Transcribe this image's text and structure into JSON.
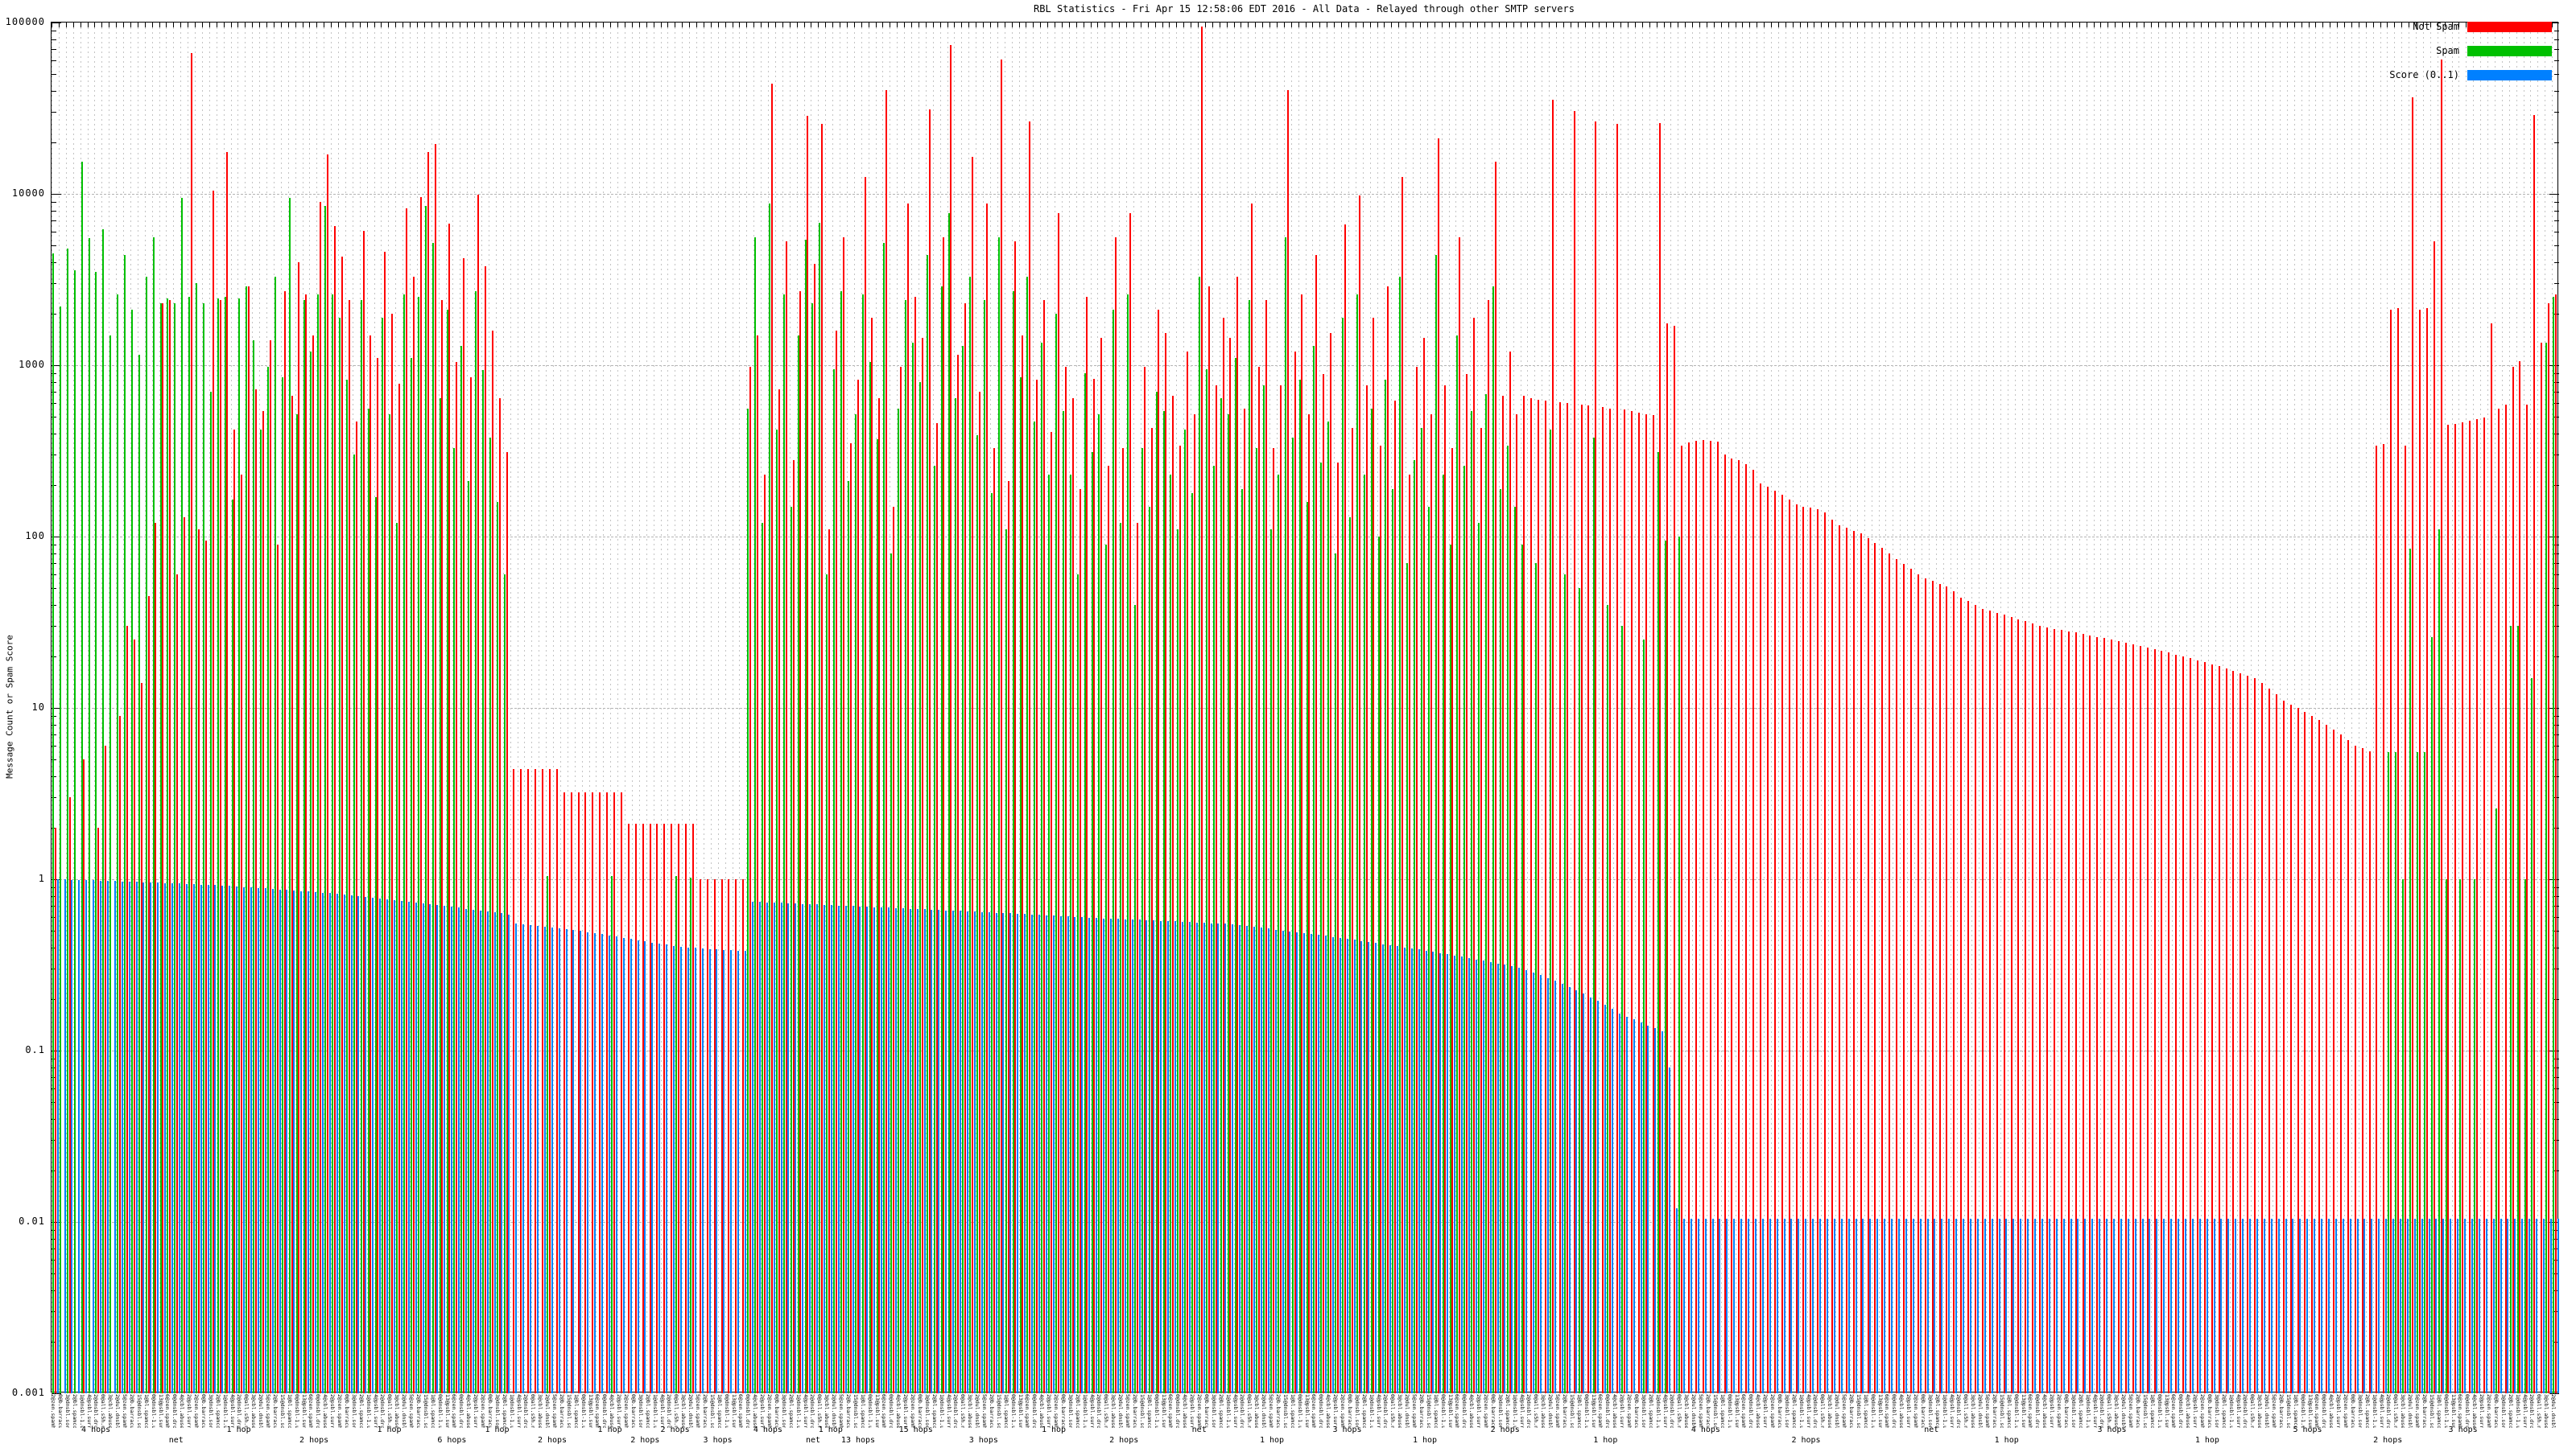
{
  "title": "RBL Statistics - Fri Apr 15 12:58:06 EDT 2016 - All Data - Relayed through other SMTP servers",
  "y_axis": {
    "label": "Message Count or Spam Score",
    "tick_labels": [
      "100000",
      "10000",
      "1000",
      "100",
      "10",
      "1",
      "0.1",
      "0.01",
      "0.001"
    ]
  },
  "legend": [
    {
      "label": "Not Spam",
      "color": "#ff0000"
    },
    {
      "label": "Spam",
      "color": "#00c000"
    },
    {
      "label": "Score (0..1)",
      "color": "#0080ff"
    }
  ],
  "x_axis": {
    "sublabels": [
      [
        0.018,
        "4 hops"
      ],
      [
        0.05,
        "net"
      ],
      [
        0.075,
        "1 hop"
      ],
      [
        0.105,
        "2 hops"
      ],
      [
        0.135,
        "1 hop"
      ],
      [
        0.16,
        "6 hops"
      ],
      [
        0.178,
        "1 hop"
      ],
      [
        0.2,
        "2 hops"
      ],
      [
        0.223,
        "1 hop"
      ],
      [
        0.237,
        "2 hops"
      ],
      [
        0.249,
        "2 hops"
      ],
      [
        0.266,
        "3 hops"
      ],
      [
        0.286,
        "4 hops"
      ],
      [
        0.304,
        "net"
      ],
      [
        0.311,
        "1 hop"
      ],
      [
        0.322,
        "13 hops"
      ],
      [
        0.345,
        "15 hops"
      ],
      [
        0.372,
        "3 hops"
      ],
      [
        0.4,
        "1 hop"
      ],
      [
        0.428,
        "2 hops"
      ],
      [
        0.458,
        "net"
      ],
      [
        0.487,
        "1 hop"
      ],
      [
        0.517,
        "3 hops"
      ],
      [
        0.548,
        "1 hop"
      ],
      [
        0.58,
        "2 hops"
      ],
      [
        0.62,
        "1 hop"
      ],
      [
        0.66,
        "4 hops"
      ],
      [
        0.7,
        "2 hops"
      ],
      [
        0.75,
        "net"
      ],
      [
        0.78,
        "1 hop"
      ],
      [
        0.822,
        "3 hops"
      ],
      [
        0.86,
        "1 hop"
      ],
      [
        0.9,
        "5 hops"
      ],
      [
        0.932,
        "2 hops"
      ],
      [
        0.962,
        "3 hops"
      ]
    ],
    "label_fragments": [
      "2@zen.spamhaus.org",
      "0@b.barracudacentral.org",
      "3@dnsbl.sorbs.net",
      "2@bl.spamcop.net",
      "1@dnsbl-1.uceprotect.net",
      "4@psbl.surriel.com",
      "2@dnsbl.dronebl.org",
      "0@all.s5h.net",
      "3@cbl.abuseat.org",
      "2@dul.dnsbl.sorbs.net",
      "5@zen.spamhaus.org",
      "2@b.barracudacentral.org",
      "15@dnsbl.sorbs.net",
      "1@bl.spamcop.net",
      "0@dnsbl-1.uceprotect.net",
      "13@psbl.surriel.com",
      "6@zen.spamhaus.org",
      "0@dnsbl.dronebl.org",
      "4@cbl.abuseat.org",
      "2@psbl.surriel.com"
    ]
  },
  "chart_data": {
    "type": "bar",
    "y_scale": "log",
    "ylim": [
      0.001,
      100000
    ],
    "grid": true,
    "legend_position": "top-right",
    "title": "RBL Statistics - Fri Apr 15 12:58:06 EDT 2016 - All Data - Relayed through other SMTP servers",
    "ylabel": "Message Count or Spam Score",
    "series": [
      {
        "name": "Not Spam",
        "color": "#ff0000",
        "values": [
          2,
          0,
          3,
          0,
          5,
          0,
          2,
          6,
          0,
          9,
          30,
          25,
          14,
          45,
          120,
          2300,
          2400,
          60,
          130,
          66000,
          110,
          95,
          10500,
          2400,
          17500,
          420,
          230,
          2900,
          720,
          540,
          1400,
          90,
          2700,
          660,
          4000,
          2600,
          1500,
          9000,
          17000,
          6500,
          4300,
          2400,
          470,
          6100,
          1500,
          1100,
          4600,
          2000,
          780,
          8200,
          3300,
          9600,
          17500,
          19500,
          2400,
          6700,
          1050,
          4200,
          850,
          9900,
          3800,
          1600,
          640,
          310,
          4.4,
          4.4,
          4.4,
          4.4,
          4.4,
          4.4,
          4.4,
          3.2,
          3.2,
          3.2,
          3.2,
          3.2,
          3.2,
          3.2,
          3.2,
          3.2,
          2.1,
          2.1,
          2.1,
          2.1,
          2.1,
          2.1,
          2.1,
          2.1,
          2.1,
          2.1,
          1,
          1,
          1,
          1,
          1,
          1,
          1,
          980,
          1500,
          230,
          44000,
          720,
          5300,
          280,
          2700,
          28500,
          3900,
          25500,
          110,
          1600,
          5600,
          350,
          820,
          12500,
          1900,
          640,
          40500,
          150,
          980,
          8800,
          2500,
          1450,
          31000,
          460,
          5600,
          74000,
          1150,
          2300,
          16500,
          700,
          8800,
          330,
          61000,
          210,
          5300,
          1500,
          26500,
          820,
          2400,
          410,
          7700,
          980,
          640,
          190,
          2500,
          830,
          1450,
          260,
          5600,
          330,
          7700,
          120,
          980,
          430,
          2100,
          1550,
          660,
          340,
          1200,
          520,
          95000,
          2900,
          760,
          1900,
          1450,
          3300,
          560,
          8800,
          980,
          2400,
          330,
          760,
          40500,
          1200,
          2600,
          520,
          4400,
          890,
          1550,
          270,
          6600,
          430,
          9800,
          760,
          1900,
          340,
          2900,
          620,
          12500,
          230,
          980,
          1450,
          520,
          21000,
          760,
          330,
          5600,
          890,
          1900,
          430,
          2400,
          15500,
          660,
          1200,
          520,
          660,
          640,
          630,
          620,
          35500,
          610,
          600,
          30500,
          590,
          580,
          26500,
          570,
          560,
          25500,
          550,
          540,
          530,
          520,
          510,
          26000,
          1750,
          1700,
          340,
          355,
          362,
          365,
          362,
          358,
          300,
          285,
          280,
          265,
          245,
          205,
          195,
          185,
          175,
          165,
          155,
          150,
          147,
          144,
          138,
          125,
          117,
          113,
          108,
          105,
          98,
          92,
          86,
          80,
          74,
          69,
          65,
          60,
          57,
          55,
          53,
          51,
          48,
          44,
          42,
          40,
          38,
          37,
          36,
          35,
          34,
          33,
          32,
          31,
          30,
          29.5,
          29,
          28.5,
          28,
          27.5,
          27,
          26.5,
          26,
          25.5,
          25,
          24.5,
          24,
          23.5,
          23,
          22.5,
          22,
          21.5,
          21,
          20.5,
          20,
          19.5,
          19,
          18.5,
          18,
          17.5,
          17,
          16.5,
          16,
          15.5,
          15,
          14,
          13,
          12,
          11,
          10.5,
          10,
          9.5,
          9,
          8.5,
          8,
          7.5,
          7,
          6.5,
          6,
          5.8,
          5.6,
          340,
          345,
          2100,
          2150,
          340,
          36500,
          2100,
          2150,
          5300,
          61000,
          450,
          455,
          465,
          475,
          485,
          495,
          1750,
          560,
          590,
          980,
          1060,
          590,
          29000,
          1350,
          2300,
          2600
        ]
      },
      {
        "name": "Spam",
        "color": "#00c000",
        "values": [
          4500,
          2200,
          4800,
          3600,
          15500,
          5500,
          3500,
          6200,
          1500,
          2600,
          4400,
          2100,
          1150,
          3300,
          5600,
          2300,
          2450,
          2300,
          9500,
          2500,
          3000,
          2300,
          700,
          2450,
          2500,
          165,
          2450,
          2900,
          1400,
          420,
          980,
          3300,
          850,
          9500,
          520,
          2400,
          1200,
          2600,
          8500,
          2600,
          1900,
          820,
          300,
          2400,
          560,
          170,
          1900,
          520,
          120,
          2600,
          1100,
          2500,
          8500,
          5200,
          640,
          2100,
          330,
          1300,
          210,
          2700,
          940,
          380,
          160,
          60,
          0,
          0,
          0,
          0,
          0,
          1.05,
          0,
          0,
          0,
          0,
          0,
          0,
          0,
          0,
          1.05,
          0,
          0,
          0,
          0,
          0,
          0,
          0,
          0,
          1.05,
          0,
          1.02,
          0,
          0,
          0,
          0,
          0,
          0,
          0,
          560,
          5600,
          120,
          8800,
          420,
          2600,
          150,
          1500,
          5400,
          2300,
          6800,
          60,
          950,
          2700,
          210,
          520,
          2600,
          1050,
          370,
          5200,
          80,
          560,
          2400,
          1350,
          800,
          4400,
          260,
          2900,
          7700,
          640,
          1300,
          3300,
          390,
          2400,
          180,
          5600,
          110,
          2700,
          850,
          3300,
          470,
          1350,
          230,
          2000,
          540,
          230,
          60,
          900,
          310,
          520,
          90,
          2100,
          120,
          2600,
          40,
          330,
          150,
          700,
          540,
          230,
          110,
          420,
          180,
          3300,
          950,
          260,
          640,
          520,
          1100,
          190,
          2400,
          330,
          760,
          110,
          230,
          5600,
          380,
          820,
          160,
          1300,
          270,
          470,
          80,
          1900,
          130,
          2600,
          230,
          560,
          100,
          820,
          190,
          3300,
          70,
          280,
          430,
          150,
          4400,
          230,
          90,
          1500,
          260,
          540,
          120,
          680,
          2900,
          190,
          340,
          150,
          90,
          0,
          70,
          0,
          420,
          0,
          60,
          0,
          50,
          0,
          380,
          0,
          40,
          0,
          30,
          0,
          0,
          25,
          0,
          310,
          95,
          0,
          100,
          0,
          0,
          0,
          0,
          0,
          0,
          0,
          0,
          0,
          0,
          0,
          0,
          0,
          0,
          0,
          0,
          0,
          0,
          0,
          0,
          0,
          0,
          0,
          0,
          0,
          0,
          0,
          0,
          0,
          0,
          0,
          0,
          0,
          0,
          0,
          0,
          0,
          0,
          0,
          0,
          0,
          0,
          0,
          0,
          0,
          0,
          0,
          0,
          0,
          0,
          0,
          0,
          0,
          0,
          0,
          0,
          0,
          0,
          0,
          0,
          0,
          0,
          0,
          0,
          0,
          0,
          0,
          0,
          0,
          0,
          0,
          0,
          0,
          0,
          0,
          0,
          0,
          0,
          0,
          0,
          0,
          0,
          0,
          0,
          0,
          0,
          0,
          0,
          0,
          0,
          0,
          0,
          0,
          0,
          0,
          0,
          0,
          0,
          5.5,
          5.5,
          1,
          85,
          5.5,
          5.5,
          26,
          110,
          1,
          0,
          1,
          0,
          1,
          0,
          0,
          2.6,
          0,
          30,
          30,
          1,
          15,
          0,
          1350,
          2500
        ]
      },
      {
        "name": "Score (0..1)",
        "color": "#0080ff",
        "values": [
          1.0,
          1.0,
          0.995,
          0.99,
          0.988,
          0.985,
          0.982,
          0.978,
          0.975,
          0.972,
          0.968,
          0.965,
          0.962,
          0.958,
          0.955,
          0.951,
          0.948,
          0.944,
          0.94,
          0.936,
          0.932,
          0.928,
          0.924,
          0.92,
          0.915,
          0.91,
          0.9,
          0.895,
          0.89,
          0.884,
          0.878,
          0.872,
          0.866,
          0.86,
          0.854,
          0.848,
          0.842,
          0.836,
          0.83,
          0.824,
          0.818,
          0.81,
          0.8,
          0.79,
          0.78,
          0.77,
          0.762,
          0.754,
          0.746,
          0.738,
          0.73,
          0.722,
          0.714,
          0.706,
          0.698,
          0.69,
          0.682,
          0.674,
          0.666,
          0.658,
          0.65,
          0.64,
          0.632,
          0.624,
          0.55,
          0.545,
          0.54,
          0.535,
          0.53,
          0.525,
          0.52,
          0.512,
          0.505,
          0.5,
          0.492,
          0.485,
          0.478,
          0.47,
          0.462,
          0.455,
          0.448,
          0.44,
          0.434,
          0.428,
          0.422,
          0.416,
          0.41,
          0.405,
          0.4,
          0.398,
          0.395,
          0.392,
          0.39,
          0.388,
          0.386,
          0.384,
          0.382,
          0.74,
          0.737,
          0.734,
          0.731,
          0.728,
          0.725,
          0.722,
          0.719,
          0.716,
          0.713,
          0.71,
          0.707,
          0.704,
          0.701,
          0.698,
          0.695,
          0.692,
          0.689,
          0.686,
          0.683,
          0.68,
          0.677,
          0.674,
          0.671,
          0.668,
          0.665,
          0.662,
          0.659,
          0.656,
          0.653,
          0.65,
          0.647,
          0.644,
          0.641,
          0.638,
          0.635,
          0.632,
          0.629,
          0.626,
          0.623,
          0.62,
          0.617,
          0.614,
          0.611,
          0.608,
          0.605,
          0.6,
          0.598,
          0.595,
          0.592,
          0.59,
          0.588,
          0.585,
          0.582,
          0.58,
          0.578,
          0.575,
          0.572,
          0.57,
          0.568,
          0.565,
          0.562,
          0.56,
          0.558,
          0.555,
          0.552,
          0.55,
          0.545,
          0.539,
          0.533,
          0.527,
          0.521,
          0.515,
          0.509,
          0.503,
          0.497,
          0.491,
          0.485,
          0.479,
          0.473,
          0.467,
          0.461,
          0.455,
          0.449,
          0.443,
          0.437,
          0.431,
          0.425,
          0.419,
          0.413,
          0.407,
          0.401,
          0.395,
          0.389,
          0.383,
          0.377,
          0.371,
          0.365,
          0.359,
          0.353,
          0.347,
          0.341,
          0.335,
          0.329,
          0.323,
          0.317,
          0.311,
          0.305,
          0.295,
          0.285,
          0.275,
          0.265,
          0.255,
          0.245,
          0.235,
          0.225,
          0.215,
          0.205,
          0.195,
          0.185,
          0.175,
          0.165,
          0.158,
          0.152,
          0.146,
          0.14,
          0.135,
          0.13,
          0.08,
          0.012,
          0.0105,
          0.0105,
          0.0105,
          0.0105,
          0.0105,
          0.0105,
          0.0105,
          0.0105,
          0.0105,
          0.0105,
          0.0105,
          0.0105,
          0.0105,
          0.0105,
          0.0105,
          0.0105,
          0.0105,
          0.0105,
          0.0105,
          0.0105,
          0.0105,
          0.0105,
          0.0105,
          0.0105,
          0.0105,
          0.0105,
          0.0105,
          0.0105,
          0.0105,
          0.0105,
          0.0105,
          0.0105,
          0.0105,
          0.0105,
          0.0105,
          0.0105,
          0.0105,
          0.0105,
          0.0105,
          0.0105,
          0.0105,
          0.0105,
          0.0105,
          0.0105,
          0.0105,
          0.0105,
          0.0105,
          0.0105,
          0.0105,
          0.0105,
          0.0105,
          0.0105,
          0.0105,
          0.0105,
          0.0105,
          0.0105,
          0.0105,
          0.0105,
          0.0105,
          0.0105,
          0.0105,
          0.0105,
          0.0105,
          0.0105,
          0.0105,
          0.0105,
          0.0105,
          0.0105,
          0.0105,
          0.0105,
          0.0105,
          0.0105,
          0.0105,
          0.0105,
          0.0105,
          0.0105,
          0.0105,
          0.0105,
          0.0105,
          0.0105,
          0.0105,
          0.0105,
          0.0105,
          0.0105,
          0.0105,
          0.0105,
          0.0105,
          0.0105,
          0.0105,
          0.0105,
          0.0105,
          0.0105,
          0.0105,
          0.0105,
          0.0105,
          0.0105,
          0.0105,
          0.0105,
          0.0105,
          0.0105,
          0.0105,
          0.0105,
          0.0105,
          0.0105,
          0.0105,
          0.0105,
          0.0105,
          0.0105,
          0.0105,
          0.0105,
          0.0105,
          0.0105,
          0.0105,
          0.0105,
          0.0105,
          0.0105,
          0.0105,
          0.0105,
          0.0105,
          0.0105,
          0.0105,
          0.0105,
          0.0105
        ]
      }
    ]
  }
}
